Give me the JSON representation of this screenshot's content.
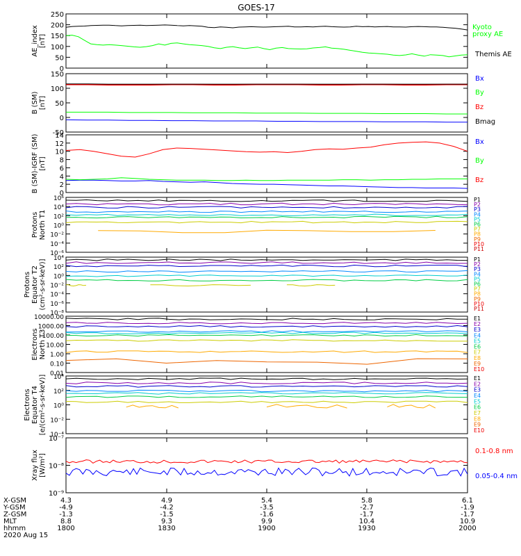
{
  "title": "GOES-17",
  "colors": {
    "black": "#000000",
    "red": "#ff0000",
    "green": "#00ff00",
    "blue": "#0000ff",
    "navy": "#0000cc",
    "darkred": "#cc0000",
    "bgred": "#a00000"
  },
  "chart_data": [
    {
      "type": "line",
      "ylabel_lines": [
        "AE_index",
        "[nT]"
      ],
      "ylim": [
        0,
        250
      ],
      "yticks": [
        "0",
        "50",
        "100",
        "150",
        "200",
        "250"
      ],
      "series": [
        {
          "name": "Kyoto proxy AE",
          "legend_lines": [
            "Kyoto",
            "proxy AE"
          ],
          "color": "#00ff00",
          "values": [
            150,
            152,
            145,
            128,
            112,
            108,
            106,
            108,
            106,
            104,
            101,
            98,
            96,
            99,
            104,
            112,
            106,
            114,
            116,
            112,
            108,
            106,
            104,
            100,
            94,
            90,
            96,
            99,
            94,
            90,
            94,
            97,
            90,
            85,
            92,
            95,
            90,
            89,
            88,
            89,
            93,
            95,
            98,
            92,
            90,
            87,
            82,
            78,
            73,
            70,
            68,
            66,
            64,
            60,
            58,
            61,
            66,
            60,
            55,
            62,
            60,
            58,
            52,
            56,
            60,
            62
          ]
        },
        {
          "name": "Themis AE",
          "legend_lines": [
            "Themis AE"
          ],
          "color": "#000000",
          "values": [
            188,
            192,
            193,
            194,
            196,
            197,
            198,
            198,
            196,
            195,
            196,
            197,
            198,
            196,
            197,
            198,
            199,
            198,
            196,
            195,
            196,
            195,
            193,
            188,
            187,
            190,
            188,
            186,
            189,
            190,
            191,
            190,
            189,
            190,
            191,
            192,
            193,
            190,
            190,
            191,
            190,
            192,
            193,
            191,
            190,
            189,
            190,
            193,
            191,
            192,
            190,
            191,
            192,
            190,
            190,
            189,
            191,
            192,
            191,
            190,
            190,
            188,
            186,
            184,
            180,
            176
          ]
        }
      ]
    },
    {
      "type": "line",
      "ylabel_lines": [
        "B (SM)",
        "[nT]"
      ],
      "ylim": [
        -50,
        150
      ],
      "yticks": [
        "-50",
        "0",
        "50",
        "100",
        "150"
      ],
      "series": [
        {
          "name": "Bx",
          "color": "#0000ff",
          "values": [
            -8,
            -9,
            -9,
            -10,
            -10,
            -11,
            -11,
            -12,
            -12,
            -12,
            -13,
            -13,
            -14,
            -14,
            -14,
            -15,
            -15,
            -15,
            -16,
            -16
          ]
        },
        {
          "name": "By",
          "color": "#00ff00",
          "values": [
            18,
            18,
            18,
            17,
            17,
            17,
            16,
            16,
            16,
            15,
            15,
            15,
            14,
            14,
            14,
            13,
            13,
            13,
            12,
            12
          ]
        },
        {
          "name": "Bz",
          "color": "#ff0000",
          "values": [
            113,
            113,
            112,
            112,
            112,
            113,
            113,
            112,
            112,
            113,
            113,
            113,
            112,
            112,
            113,
            113,
            112,
            112,
            113,
            113
          ]
        },
        {
          "name": "Bmag",
          "color": "#000000",
          "values": [
            115,
            115,
            114,
            114,
            114,
            114,
            114,
            114,
            114,
            114,
            114,
            114,
            114,
            114,
            114,
            114,
            114,
            114,
            114,
            114
          ]
        }
      ]
    },
    {
      "type": "line",
      "ylabel_lines": [
        "B (SM)-IGRF (SM)",
        "[nT]"
      ],
      "ylim": [
        0,
        14
      ],
      "yticks": [
        "0",
        "2",
        "4",
        "6",
        "8",
        "10",
        "12",
        "14"
      ],
      "series": [
        {
          "name": "Bx",
          "color": "#0000ff",
          "values": [
            2.9,
            3.0,
            3.0,
            2.9,
            2.8,
            2.8,
            2.9,
            2.7,
            2.6,
            2.5,
            2.6,
            2.4,
            2.2,
            2.1,
            2.0,
            2.0,
            1.9,
            1.8,
            1.7,
            1.6,
            1.6,
            1.5,
            1.4,
            1.3,
            1.2,
            1.2,
            1.1,
            1.1,
            1.1,
            1.0
          ]
        },
        {
          "name": "By",
          "color": "#00ff00",
          "values": [
            3.2,
            3.1,
            3.2,
            3.3,
            3.6,
            3.4,
            3.2,
            3.1,
            3.0,
            3.0,
            3.0,
            2.9,
            2.9,
            3.0,
            2.9,
            2.9,
            3.0,
            3.0,
            3.0,
            3.0,
            3.1,
            3.1,
            3.0,
            3.1,
            3.1,
            3.2,
            3.2,
            3.3,
            3.3,
            3.3
          ]
        },
        {
          "name": "Bz",
          "color": "#ff0000",
          "values": [
            10.2,
            10.4,
            10.0,
            9.4,
            8.8,
            8.6,
            9.4,
            10.4,
            10.8,
            10.7,
            10.5,
            10.3,
            10.1,
            9.9,
            9.8,
            9.9,
            9.7,
            10.0,
            10.4,
            10.6,
            10.5,
            10.8,
            11.0,
            11.6,
            12.0,
            12.2,
            12.3,
            12.0,
            11.2,
            10.0
          ]
        }
      ]
    }
  ],
  "proton_panels": [
    {
      "ylabel_lines": [
        "Protons",
        "North T1"
      ],
      "yticks": [
        "10⁶",
        "10⁴",
        "10²",
        "10⁰",
        "10⁻²",
        "10⁻⁴",
        "10⁻⁶"
      ],
      "legend": [
        "P1",
        "P2",
        "P3",
        "P4",
        "P5",
        "P6",
        "P7",
        "P8",
        "P9",
        "P10",
        "P11"
      ]
    },
    {
      "ylabel_lines": [
        "Protons",
        "Equator T2",
        "(cm²-s-sr-keV)]"
      ],
      "yticks": [
        "10⁴",
        "10²",
        "10⁰",
        "10⁻²",
        "10⁻⁴",
        "10⁻⁶",
        "10⁻⁸"
      ],
      "legend": [
        "P1",
        "P2",
        "P3",
        "P4",
        "P5",
        "P6",
        "P7",
        "P8",
        "P9",
        "P10",
        "P11"
      ]
    }
  ],
  "electron_panels": [
    {
      "ylabel_lines": [
        "Electrons",
        "North T3"
      ],
      "yticks": [
        "10000.00",
        "1000.00",
        "100.00",
        "10.00",
        "1.00",
        "0.10",
        "0.01"
      ],
      "legend": [
        "E1",
        "E2",
        "E3",
        "E4",
        "E5",
        "E6",
        "E7",
        "E8",
        "E9",
        "E10"
      ]
    },
    {
      "ylabel_lines": [
        "Electrons",
        "Equator T4",
        "[e/(cm²-s-sr-keV)]"
      ],
      "yticks": [
        "10⁴",
        "10²",
        "10⁰",
        "10⁻²",
        "10⁻⁴"
      ],
      "legend": [
        "E1",
        "E2",
        "E3",
        "E4",
        "E5",
        "E6",
        "E7",
        "E8",
        "E9",
        "E10"
      ]
    }
  ],
  "xray_panel": {
    "ylabel_lines": [
      "Xray flux",
      "[W/m²]"
    ],
    "yticks": [
      "10⁻⁷",
      "10⁻⁸",
      "10⁻⁹"
    ],
    "series": [
      {
        "name": "0.1-0.8 nm",
        "color": "#ff0000"
      },
      {
        "name": "0.05-0.4 nm",
        "color": "#0000ff"
      }
    ]
  },
  "x_axis": {
    "row_labels": [
      "X-GSM",
      "Y-GSM",
      "Z-GSM",
      "MLT",
      "hhmm",
      "2020 Aug 15"
    ],
    "ticks": [
      {
        "rows": [
          "4.3",
          "-4.9",
          "-1.3",
          "8.8",
          "1800"
        ]
      },
      {
        "rows": [
          "4.9",
          "-4.2",
          "-1.5",
          "9.3",
          "1830"
        ]
      },
      {
        "rows": [
          "5.4",
          "-3.5",
          "-1.6",
          "9.9",
          "1900"
        ]
      },
      {
        "rows": [
          "5.8",
          "-2.7",
          "-1.7",
          "10.4",
          "1930"
        ]
      },
      {
        "rows": [
          "6.1",
          "-1.9",
          "-1.7",
          "10.9",
          "2000"
        ]
      }
    ]
  }
}
